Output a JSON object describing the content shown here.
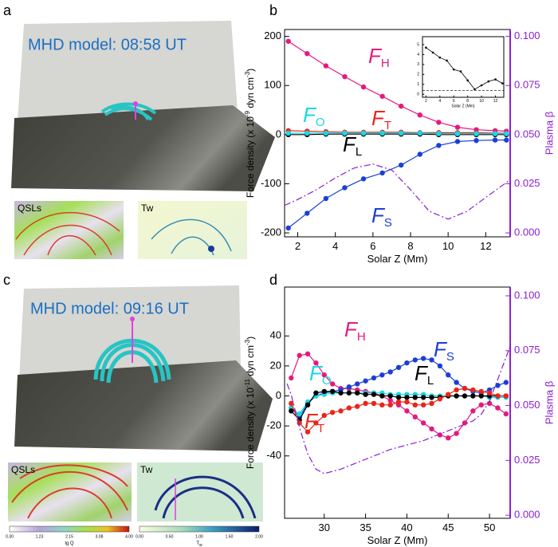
{
  "panel_labels": [
    "a",
    "b",
    "c",
    "d"
  ],
  "images": [
    {
      "title": "MHD model: 08:58 UT",
      "maps": [
        "QSLs",
        "Tw"
      ]
    },
    {
      "title": "MHD model: 09:16 UT",
      "maps": [
        "QSLs",
        "Tw"
      ],
      "colorbars": [
        {
          "label": [
            "lg Q"
          ],
          "ticks": [
            "0.30",
            "1.23",
            "2.15",
            "3.08",
            "4.00"
          ]
        },
        {
          "label": [
            "T",
            "w"
          ],
          "ticks": [
            "0.00",
            "0.50",
            "1.00",
            "1.50",
            "2.00"
          ]
        }
      ]
    }
  ],
  "chart_data": [
    {
      "type": "line",
      "xlabel": "Solar Z (Mm)",
      "ylabel": [
        "Force density (x 10",
        "-9",
        " dyn cm",
        "-3",
        ")"
      ],
      "y2label": "Plasma β",
      "y2color": "#8a1fd6",
      "xlim": [
        1.3,
        13.3
      ],
      "xticks": [
        2,
        4,
        6,
        8,
        10,
        12
      ],
      "ylim": [
        -208,
        214
      ],
      "yticks": [
        -200,
        -100,
        0,
        100,
        200
      ],
      "y2lim": [
        -0.002,
        0.1035
      ],
      "y2ticks": [
        {
          "value": 0,
          "label": "0.000"
        },
        {
          "value": 0.025,
          "label": "0.025"
        },
        {
          "value": 0.05,
          "label": "0.050"
        },
        {
          "value": 0.075,
          "label": "0.075"
        },
        {
          "value": 0.1,
          "label": "0.100"
        }
      ],
      "x": [
        1.5,
        2.5,
        3.5,
        4.5,
        5.5,
        6.5,
        7.5,
        8.5,
        9.5,
        10.5,
        11.5,
        12.5,
        13.1
      ],
      "series": [
        {
          "name": "F",
          "subscript": "H",
          "color": "#e6197f",
          "markers": true,
          "values": [
            190,
            165,
            140,
            118,
            97,
            78,
            58,
            40,
            25,
            15,
            10,
            8,
            7
          ]
        },
        {
          "name": "F",
          "subscript": "T",
          "color": "#e8261a",
          "markers": true,
          "values": [
            8,
            7,
            6,
            5,
            5,
            5,
            5,
            4,
            4,
            4,
            4,
            3,
            3
          ]
        },
        {
          "name": "F",
          "subscript": "L",
          "color": "#000000",
          "markers": true,
          "values": [
            0,
            0,
            1,
            1,
            1,
            1,
            1,
            1,
            0,
            0,
            0,
            0,
            0
          ]
        },
        {
          "name": "F",
          "subscript": "O",
          "color": "#17d8e6",
          "markers": true,
          "values": [
            3,
            3,
            3,
            3,
            3,
            3,
            3,
            3,
            2,
            2,
            2,
            2,
            2
          ]
        },
        {
          "name": "F",
          "subscript": "S",
          "color": "#1a3fd6",
          "markers": true,
          "values": [
            -190,
            -160,
            -130,
            -108,
            -90,
            -78,
            -62,
            -40,
            -22,
            -14,
            -12,
            -11,
            -11
          ]
        },
        {
          "color": "#8a1fd6",
          "axis": "y2",
          "dash": "dashdot",
          "x": [
            1.3,
            2,
            3,
            4,
            5,
            6,
            7,
            8,
            9,
            10,
            11,
            12,
            13.3
          ],
          "values": [
            0.014,
            0.017,
            0.022,
            0.028,
            0.033,
            0.035,
            0.032,
            0.022,
            0.011,
            0.007,
            0.011,
            0.018,
            0.027
          ]
        }
      ]
    },
    {
      "type": "line",
      "xlabel": "Solar Z (Mm)",
      "xlim": [
        1.5,
        13.2
      ],
      "xticks": [
        2,
        4,
        6,
        8,
        10,
        12
      ],
      "ylim": [
        -0.3,
        5.8
      ],
      "yticks": [
        0,
        1,
        2,
        3,
        4,
        5
      ],
      "reference_line": 0.4,
      "x": [
        2,
        3,
        4,
        5,
        6,
        7,
        8,
        9,
        10,
        11,
        12,
        13
      ],
      "series": [
        {
          "color": "#000000",
          "markers": true,
          "values": [
            4.7,
            4.2,
            3.7,
            3.4,
            2.5,
            2.3,
            1.4,
            0.5,
            0.9,
            1.3,
            1.5,
            1.1
          ]
        }
      ]
    },
    {
      "type": "line",
      "xlabel": "Solar Z (Mm)",
      "ylabel": [
        "Force density (x 10",
        "-11",
        " dyn cm",
        "-3",
        ")"
      ],
      "y2label": "Plasma β",
      "y2color": "#8a1fd6",
      "xlim": [
        25.2,
        52.5
      ],
      "xticks": [
        30,
        35,
        40,
        45,
        50
      ],
      "ylim": [
        -81.6,
        72.6
      ],
      "yticks": [
        -40,
        -20,
        0,
        20,
        40
      ],
      "y2lim": [
        -0.0014,
        0.104
      ],
      "y2ticks": [
        {
          "value": 0,
          "label": "0.000"
        },
        {
          "value": 0.025,
          "label": "0.025"
        },
        {
          "value": 0.05,
          "label": "0.050"
        },
        {
          "value": 0.075,
          "label": "0.075"
        },
        {
          "value": 0.1,
          "label": "0.100"
        }
      ],
      "x": [
        26,
        27,
        28,
        29,
        30,
        31,
        32,
        33,
        34,
        35,
        36,
        37,
        38,
        39,
        40,
        41,
        42,
        43,
        44,
        45,
        46,
        47,
        48,
        49,
        50,
        51,
        52
      ],
      "series": [
        {
          "name": "F",
          "subscript": "H",
          "color": "#e6197f",
          "markers": true,
          "values": [
            12,
            27,
            28,
            22,
            14,
            8,
            5,
            5,
            4,
            3,
            2,
            0,
            -3,
            -6,
            -10,
            -14,
            -18,
            -22,
            -26,
            -28,
            -25,
            -18,
            -10,
            -6,
            -5,
            -8,
            -12
          ]
        },
        {
          "name": "F",
          "subscript": "S",
          "color": "#1a3fd6",
          "markers": true,
          "values": [
            -8,
            -14,
            -5,
            0,
            2,
            3,
            4,
            6,
            8,
            10,
            12,
            14,
            16,
            19,
            22,
            24,
            25,
            24,
            20,
            14,
            9,
            5,
            3,
            2,
            4,
            7,
            9
          ]
        },
        {
          "name": "F",
          "subscript": "O",
          "color": "#17d8e6",
          "markers": true,
          "values": [
            -8,
            -12,
            -4,
            0,
            1,
            2,
            2,
            2,
            2,
            2,
            2,
            2,
            1,
            1,
            1,
            1,
            1,
            0,
            0,
            0,
            0,
            0,
            0,
            0,
            -1,
            -1,
            -1
          ]
        },
        {
          "name": "F",
          "subscript": "L",
          "color": "#000000",
          "markers": true,
          "values": [
            -10,
            -16,
            -6,
            2,
            3,
            3,
            2,
            2,
            2,
            1,
            1,
            0,
            0,
            -1,
            -1,
            -1,
            -1,
            -1,
            -1,
            0,
            0,
            0,
            0,
            0,
            0,
            0,
            0
          ]
        },
        {
          "name": "F",
          "subscript": "T",
          "color": "#e8261a",
          "markers": true,
          "values": [
            -5,
            -18,
            -24,
            -18,
            -13,
            -11,
            -10,
            -8,
            -7,
            -5,
            -5,
            -6,
            -6,
            -4,
            -4,
            -6,
            -6,
            -5,
            -2,
            1,
            4,
            5,
            4,
            3,
            2,
            0,
            0
          ]
        },
        {
          "color": "#8a1fd6",
          "axis": "y2",
          "dash": "dashdot",
          "x": [
            25.5,
            26,
            27,
            28,
            29,
            30,
            32,
            34,
            36,
            38,
            40,
            42,
            44,
            46,
            48,
            49,
            50,
            51,
            52.5
          ],
          "values": [
            0.06,
            0.055,
            0.04,
            0.028,
            0.021,
            0.019,
            0.021,
            0.024,
            0.027,
            0.03,
            0.032,
            0.034,
            0.037,
            0.04,
            0.043,
            0.046,
            0.052,
            0.062,
            0.077
          ]
        }
      ]
    }
  ]
}
